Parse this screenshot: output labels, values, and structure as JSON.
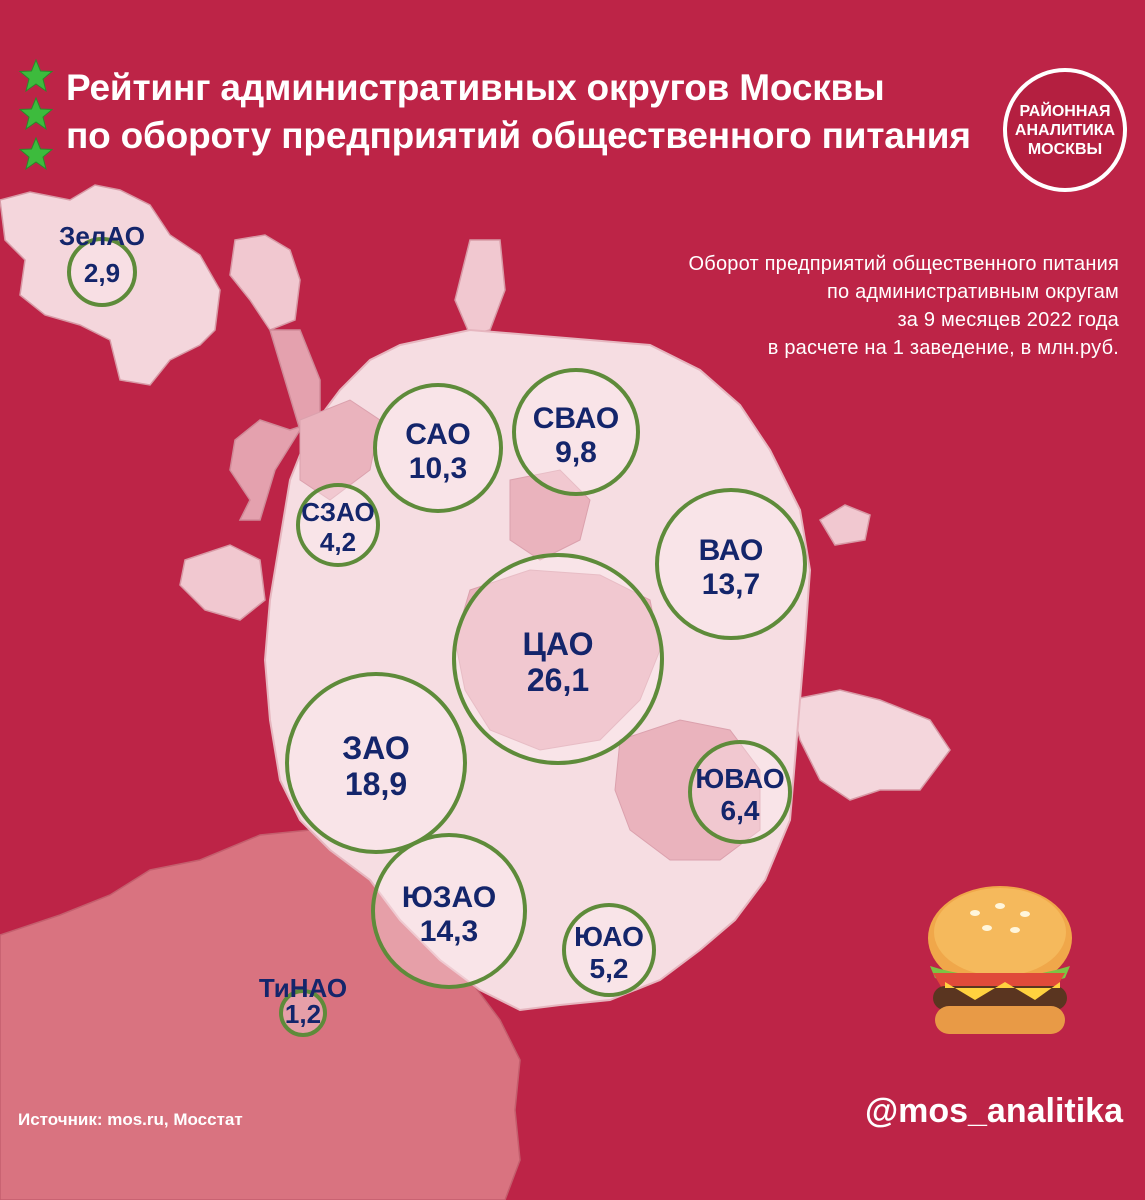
{
  "title": {
    "line1": "Рейтинг административных округов Москвы",
    "line2": "по обороту предприятий общественного питания"
  },
  "logo": {
    "line1": "РАЙОННАЯ",
    "line2": "АНАЛИТИКА",
    "line3": "МОСКВЫ"
  },
  "caption": {
    "line1": "Оборот предприятий общественного питания",
    "line2": "по административным округам",
    "line3": "за 9 месяцев 2022 года",
    "line4": "в расчете на 1 заведение, в млн.руб."
  },
  "districts": [
    {
      "name": "ЗелАО",
      "value": "2,9"
    },
    {
      "name": "САО",
      "value": "10,3"
    },
    {
      "name": "СВАО",
      "value": "9,8"
    },
    {
      "name": "СЗАО",
      "value": "4,2"
    },
    {
      "name": "ВАО",
      "value": "13,7"
    },
    {
      "name": "ЦАО",
      "value": "26,1"
    },
    {
      "name": "ЗАО",
      "value": "18,9"
    },
    {
      "name": "ЮВАО",
      "value": "6,4"
    },
    {
      "name": "ЮЗАО",
      "value": "14,3"
    },
    {
      "name": "ЮАО",
      "value": "5,2"
    },
    {
      "name": "ТиНАО",
      "value": "1,2"
    }
  ],
  "source": "Источник: mos.ru, Мосстат",
  "handle": "@mos_analitika",
  "colors": {
    "background": "#bd2447",
    "map_light": "#f6dde2",
    "map_medium": "#e9aeb9",
    "map_dark": "#d9707f",
    "circle_stroke": "#5e8b3a",
    "label": "#14256b"
  }
}
